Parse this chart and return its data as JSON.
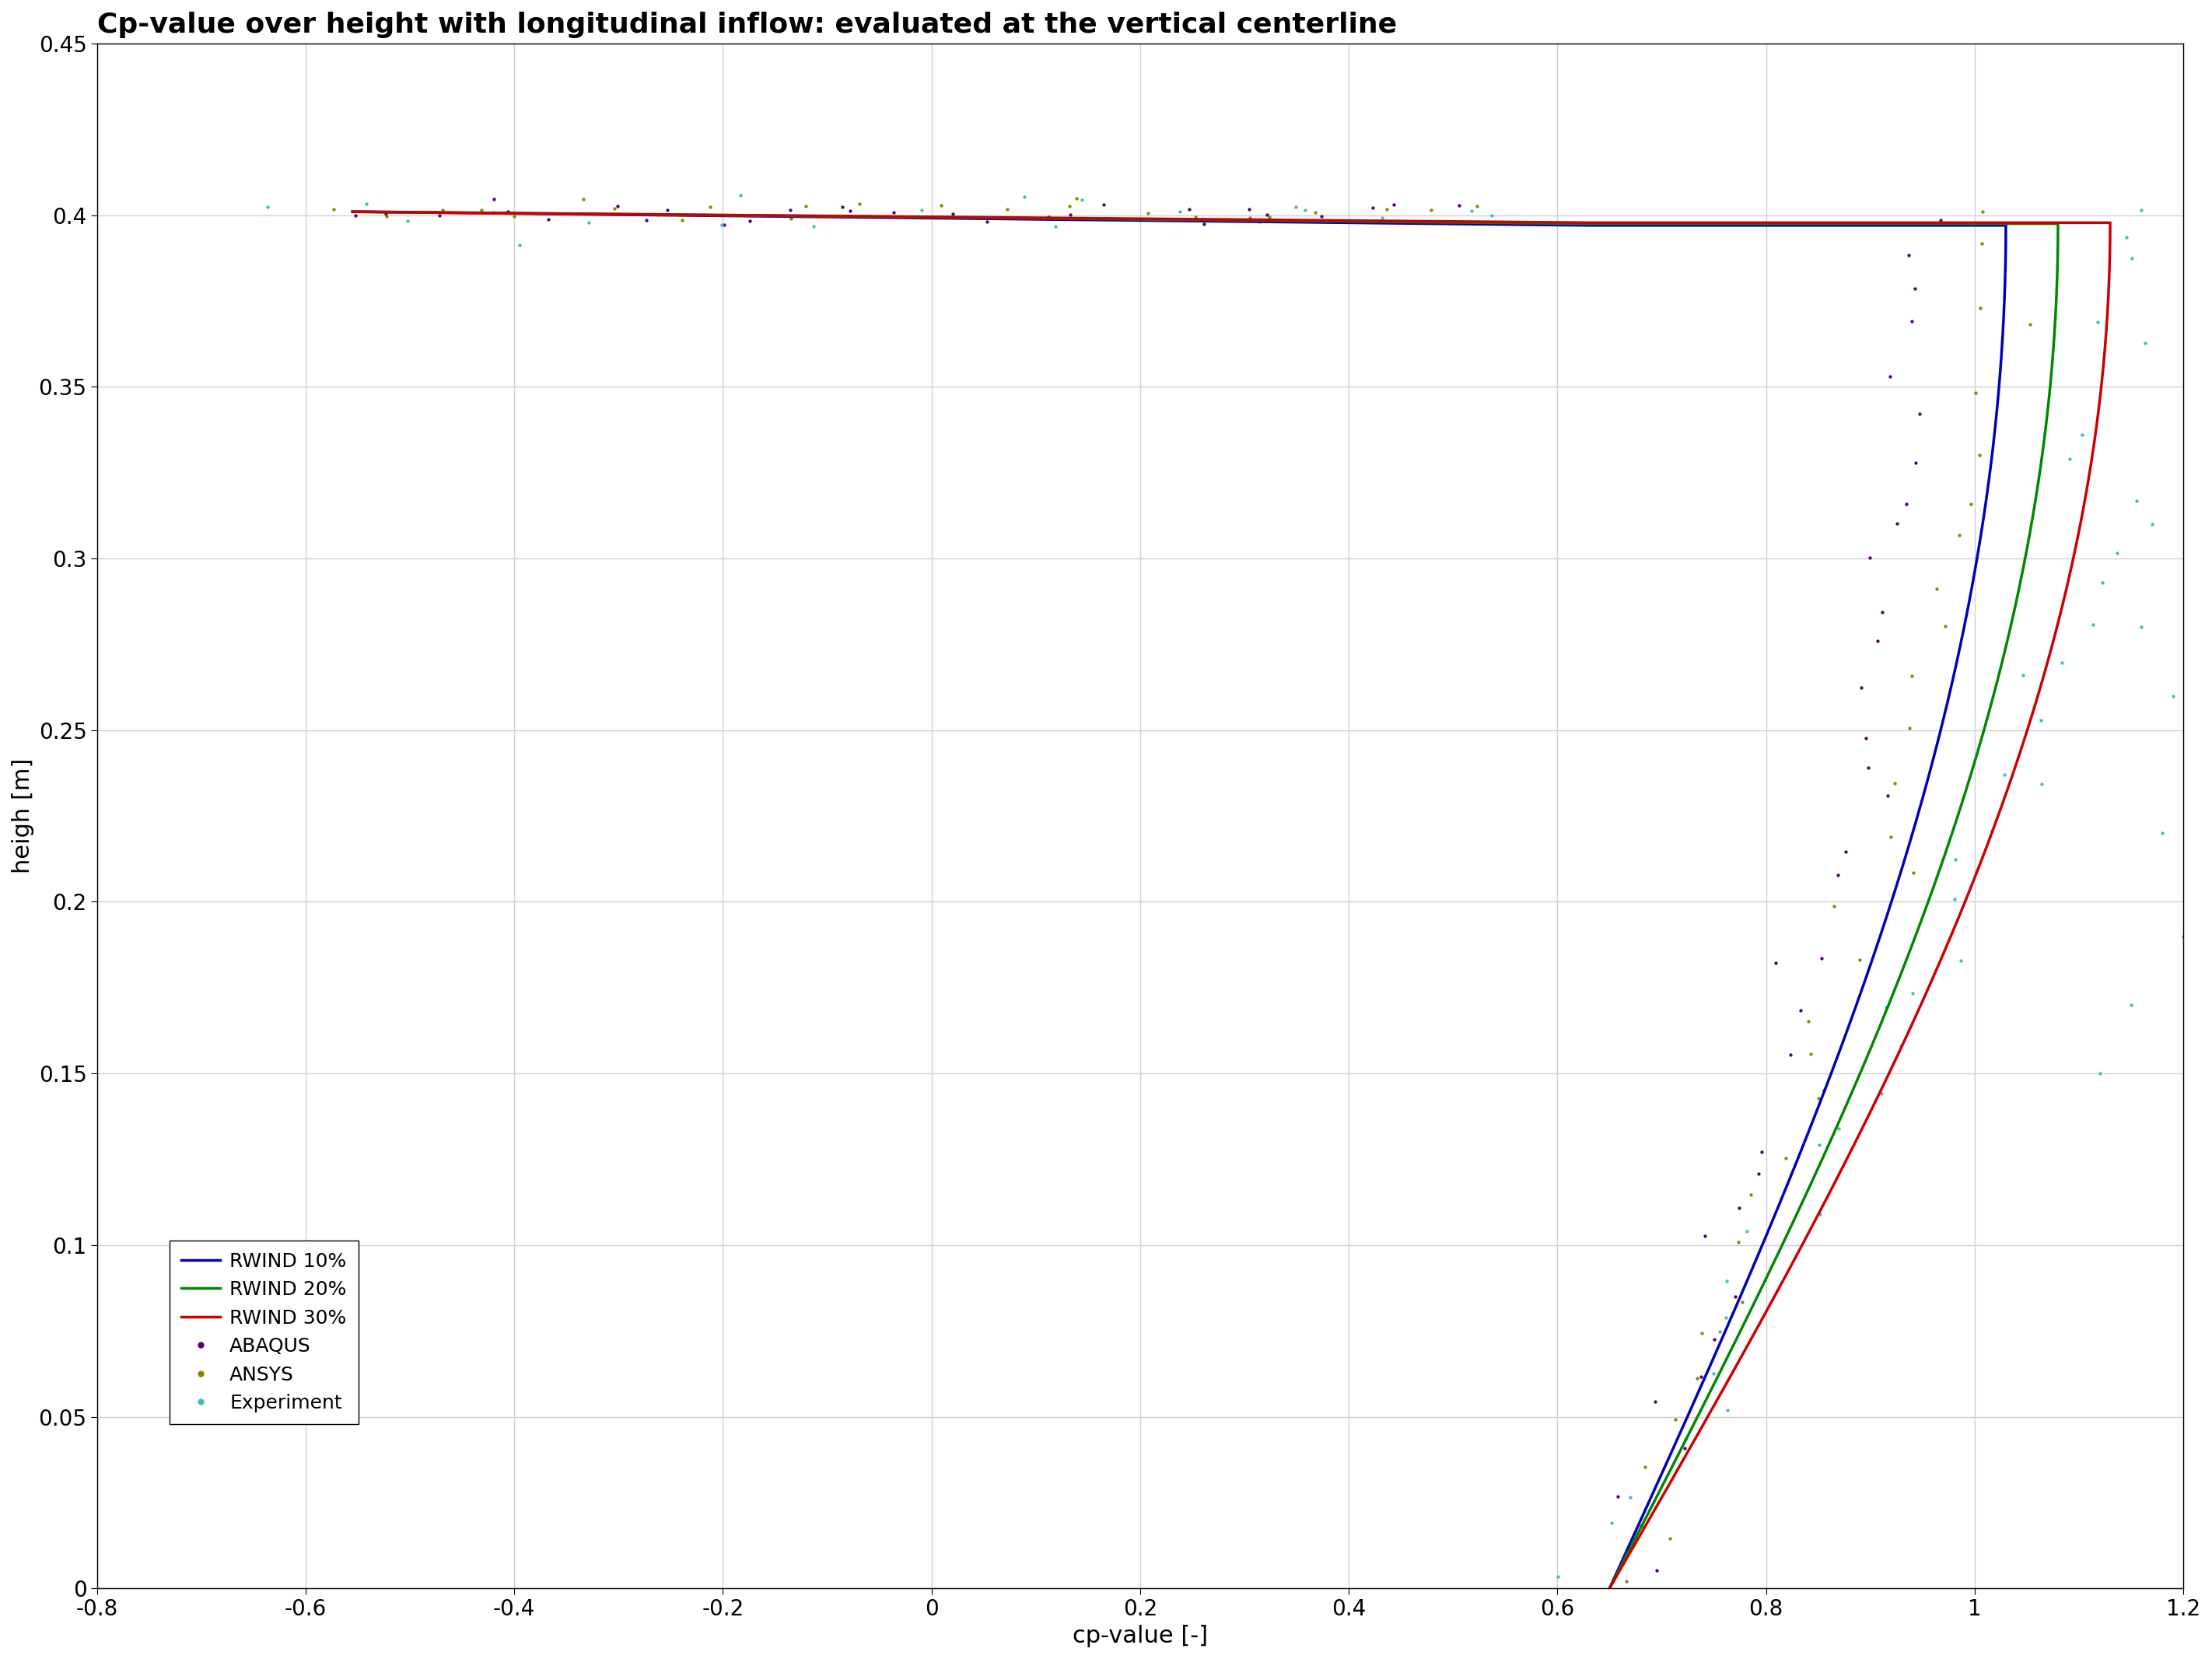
{
  "title": "Cp-value over height with longitudinal inflow: evaluated at the vertical centerline",
  "xlabel": "cp-value [-]",
  "ylabel": "heigh [m]",
  "xlim": [
    -0.8,
    1.2
  ],
  "ylim": [
    0,
    0.45
  ],
  "xticks": [
    -0.8,
    -0.6,
    -0.4,
    -0.2,
    0.0,
    0.2,
    0.4,
    0.6,
    0.8,
    1.0,
    1.2
  ],
  "yticks": [
    0,
    0.05,
    0.1,
    0.15,
    0.2,
    0.25,
    0.3,
    0.35,
    0.4,
    0.45
  ],
  "legend_entries": [
    "RWIND 10%",
    "RWIND 20%",
    "RWIND 30%",
    "ABAQUS",
    "ANSYS",
    "Experiment"
  ],
  "line_colors": [
    "#0000bb",
    "#008800",
    "#cc0000"
  ],
  "dot_colors": [
    "#550077",
    "#888800",
    "#44bbbb"
  ],
  "background_color": "#ffffff",
  "title_fontsize": 26,
  "axis_fontsize": 22,
  "tick_fontsize": 20,
  "legend_fontsize": 18,
  "grid_color": "#d0d0d0",
  "linewidth": 2.5
}
